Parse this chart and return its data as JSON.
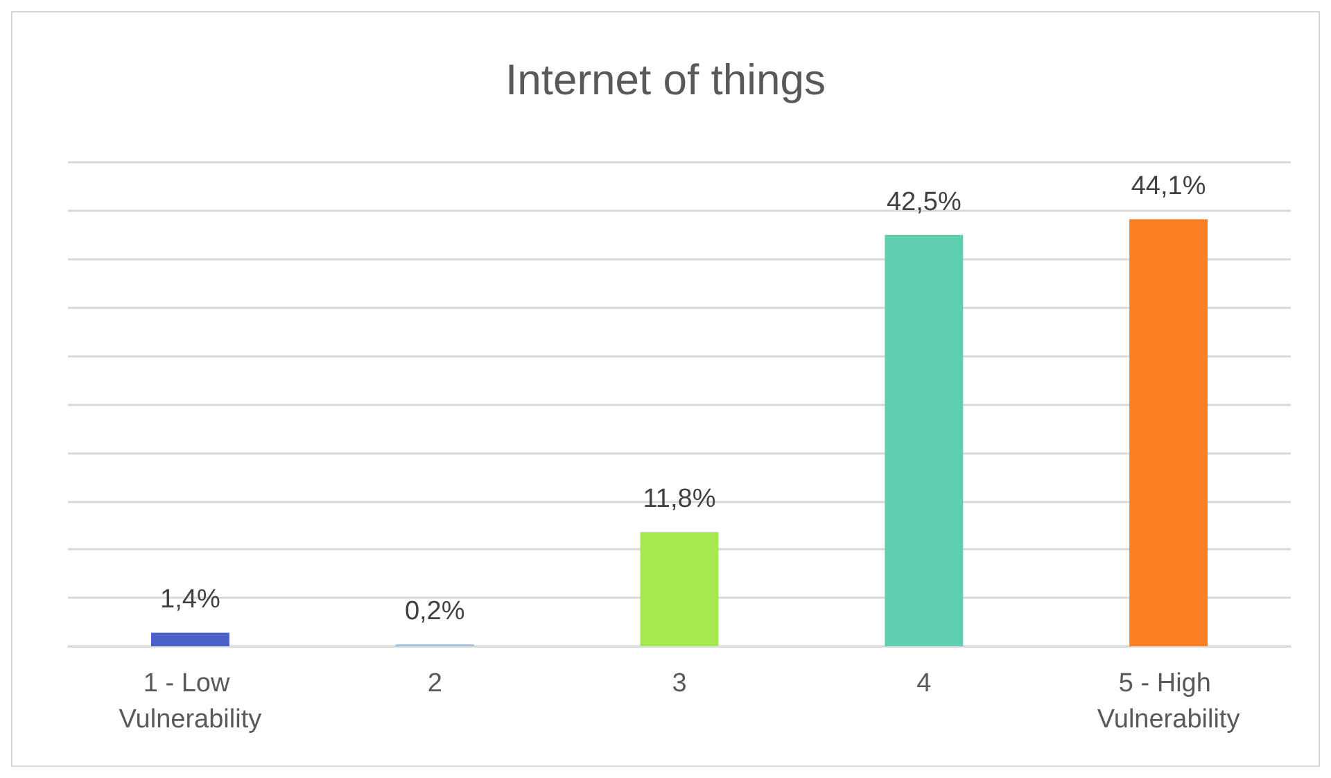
{
  "chart_data": {
    "type": "bar",
    "title": "Internet of things",
    "categories": [
      "1 - Low Vulnerability",
      "2",
      "3",
      "4",
      "5 - High Vulnerability"
    ],
    "values": [
      1.4,
      0.2,
      11.8,
      42.5,
      44.1
    ],
    "colors": [
      "#4a62c8",
      "#9dc3e6",
      "#a5e84f",
      "#5ecfb0",
      "#fd7f23"
    ],
    "value_labels": [
      "1,4%",
      "0,2%",
      "11,8%",
      "42,5%",
      "44,1%"
    ],
    "ylim": [
      0,
      50
    ],
    "yticks": [
      0,
      5,
      10,
      15,
      20,
      25,
      30,
      35,
      40,
      45,
      50
    ],
    "grid": "y",
    "tick_labels": "x"
  }
}
